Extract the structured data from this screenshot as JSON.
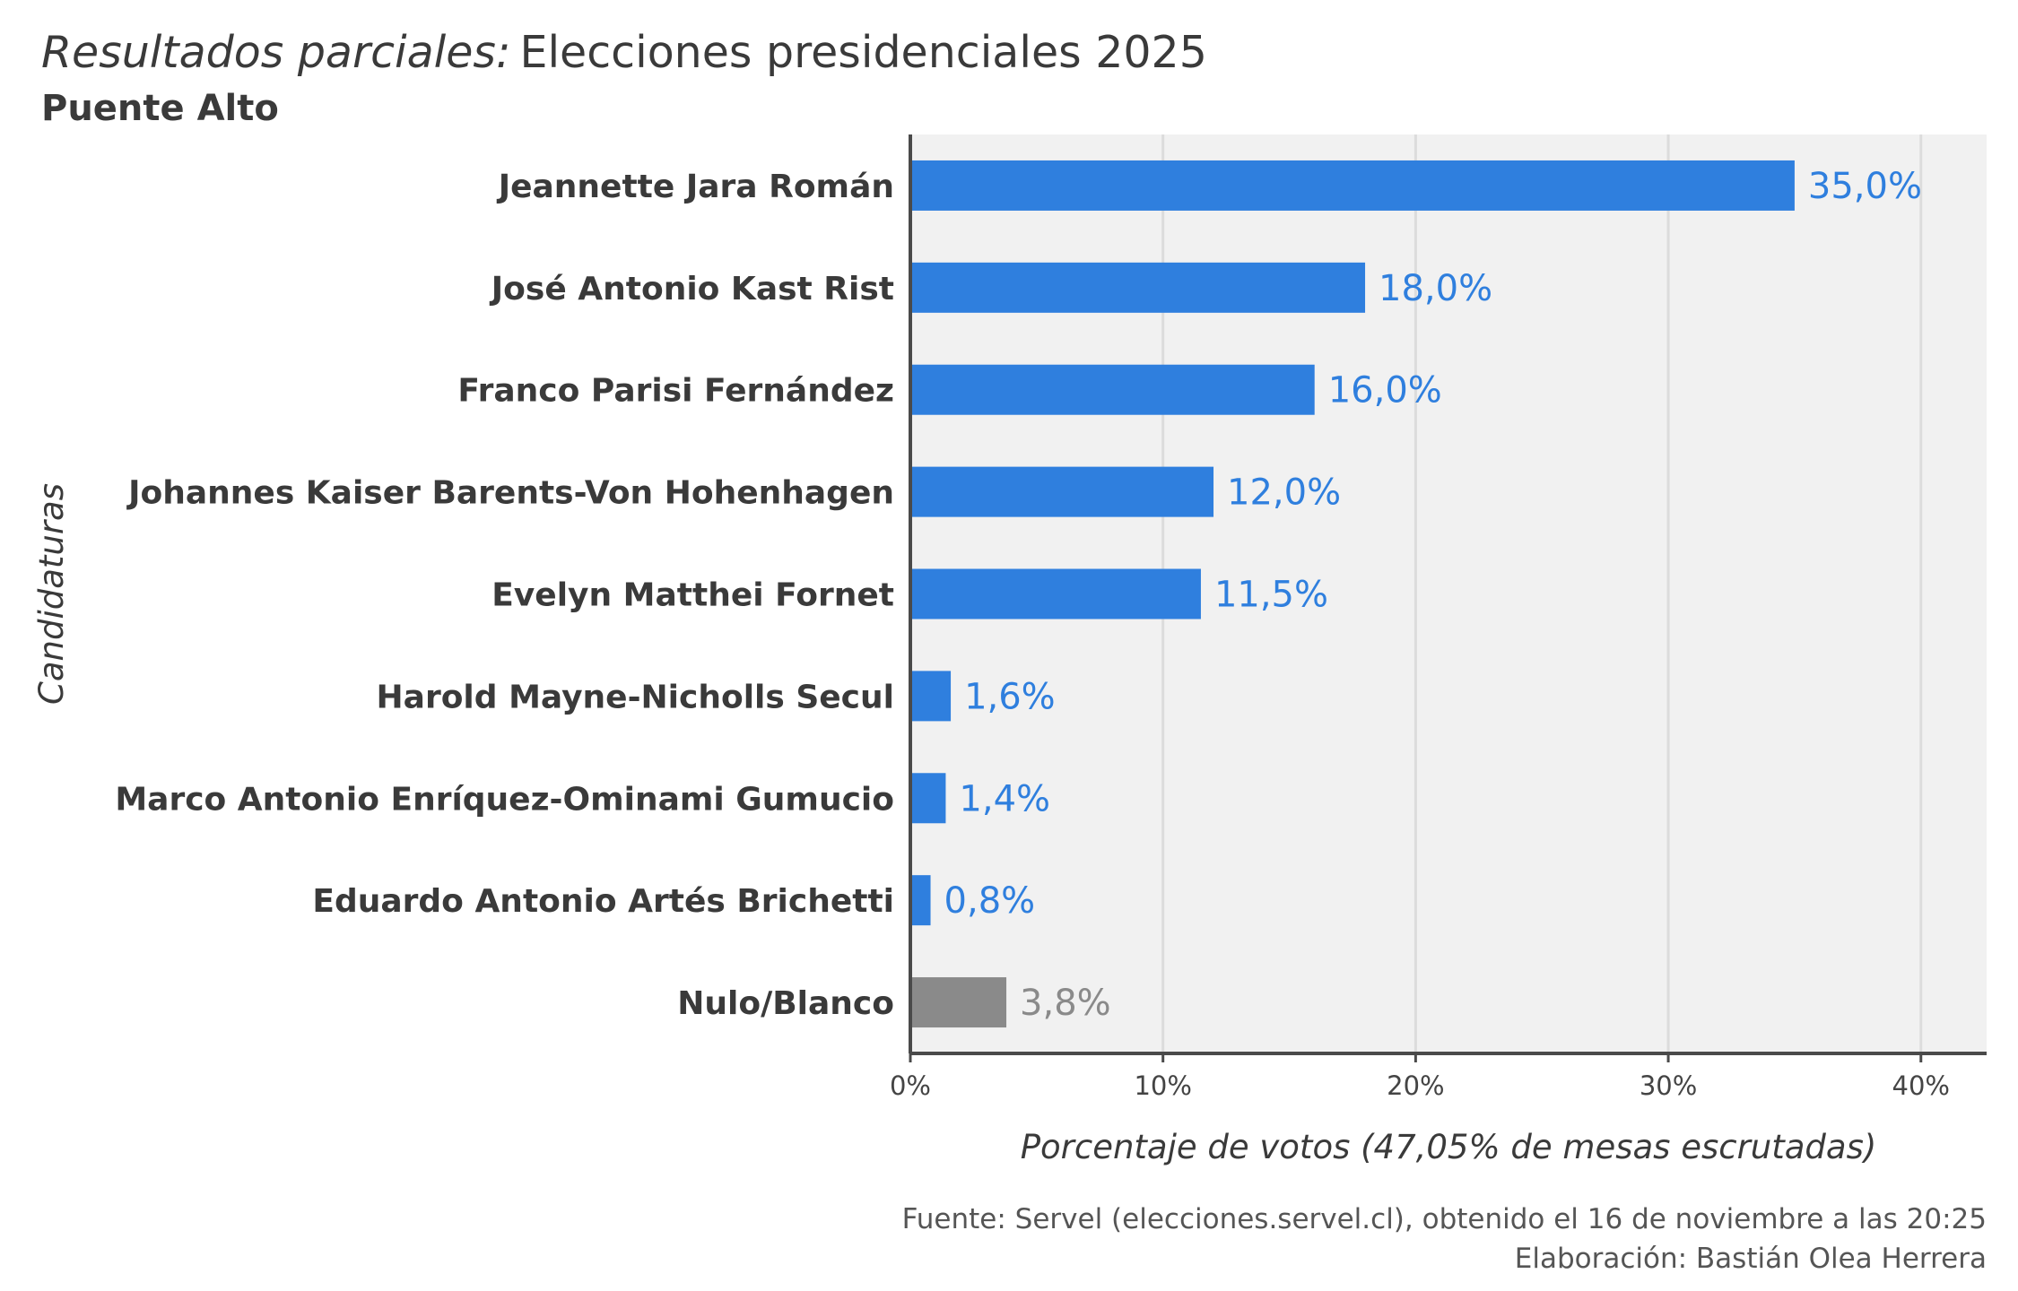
{
  "header": {
    "title_italic": "Resultados parciales:",
    "title_main": "Elecciones presidenciales 2025",
    "subtitle": "Puente Alto"
  },
  "caption": {
    "source": "Fuente: Servel (elecciones.servel.cl), obtenido el 16 de noviembre a las 20:25",
    "author": "Elaboración: Bastián Olea Herrera"
  },
  "colors": {
    "candidate_bar": "#2f7fde",
    "null_bar": "#8a8a8a",
    "candidate_label": "#2f7fde",
    "null_label": "#8a8a8a",
    "panel_background": "#f1f1f1",
    "gridline": "#dcdcdc",
    "axis_line": "#4a4a4a"
  },
  "chart_data": {
    "type": "bar",
    "orientation": "horizontal",
    "xlabel": "Porcentaje de votos (47,05% de mesas escrutadas)",
    "ylabel": "Candidaturas",
    "xlim": [
      0,
      42.6
    ],
    "x_ticks": [
      0,
      10,
      20,
      30,
      40
    ],
    "x_tick_labels": [
      "0%",
      "10%",
      "20%",
      "30%",
      "40%"
    ],
    "grid": "vertical",
    "legend": "none",
    "categories": [
      "Jeannette Jara Román",
      "José Antonio Kast Rist",
      "Franco Parisi Fernández",
      "Johannes Kaiser Barents-Von Hohenhagen",
      "Evelyn Matthei Fornet",
      "Harold Mayne-Nicholls Secul",
      "Marco Antonio Enríquez-Ominami Gumucio",
      "Eduardo Antonio Artés Brichetti",
      "Nulo/Blanco"
    ],
    "values": [
      35.0,
      18.0,
      16.0,
      12.0,
      11.5,
      1.6,
      1.4,
      0.8,
      3.8
    ],
    "value_labels": [
      "35,0%",
      "18,0%",
      "16,0%",
      "12,0%",
      "11,5%",
      "1,6%",
      "1,4%",
      "0,8%",
      "3,8%"
    ],
    "bar_kind": [
      "candidate",
      "candidate",
      "candidate",
      "candidate",
      "candidate",
      "candidate",
      "candidate",
      "candidate",
      "null"
    ]
  }
}
